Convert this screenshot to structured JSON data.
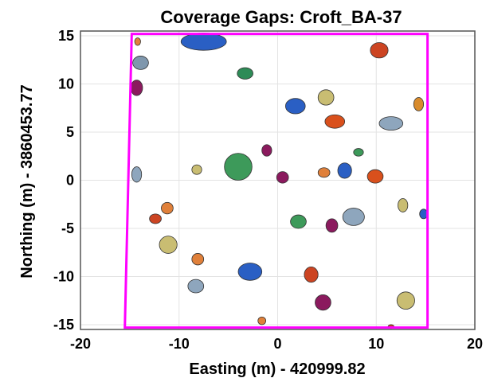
{
  "chart_data": {
    "type": "scatter",
    "title": "Coverage Gaps: Croft_BA-37",
    "xlabel": "Easting (m) - 420999.82",
    "ylabel": "Northing (m) - 3860453.77",
    "xlim": [
      -20,
      20
    ],
    "ylim": [
      -15.5,
      15.5
    ],
    "xticks": [
      -20,
      -10,
      0,
      10,
      20
    ],
    "yticks": [
      -15,
      -10,
      -5,
      0,
      5,
      10,
      15
    ],
    "grid": true,
    "boundary": {
      "color": "#ff00ff",
      "points": [
        [
          -14.8,
          15.2
        ],
        [
          15.2,
          15.2
        ],
        [
          15.2,
          -15.3
        ],
        [
          -15.5,
          -15.3
        ]
      ]
    },
    "gaps": [
      {
        "x": -7.5,
        "y": 14.4,
        "rx": 2.3,
        "ry": 0.9,
        "color": "#2a5fc4"
      },
      {
        "x": -14.2,
        "y": 14.4,
        "rx": 0.3,
        "ry": 0.4,
        "color": "#e0803a"
      },
      {
        "x": -13.9,
        "y": 12.2,
        "rx": 0.8,
        "ry": 0.7,
        "color": "#7f97ad"
      },
      {
        "x": -14.3,
        "y": 9.6,
        "rx": 0.6,
        "ry": 0.8,
        "color": "#8b1a5e"
      },
      {
        "x": -3.3,
        "y": 11.1,
        "rx": 0.8,
        "ry": 0.6,
        "color": "#2e8b57"
      },
      {
        "x": 10.3,
        "y": 13.5,
        "rx": 0.9,
        "ry": 0.8,
        "color": "#cc4422"
      },
      {
        "x": 1.8,
        "y": 7.7,
        "rx": 1.0,
        "ry": 0.8,
        "color": "#2a5fc4"
      },
      {
        "x": 4.9,
        "y": 8.6,
        "rx": 0.8,
        "ry": 0.8,
        "color": "#c9bd72"
      },
      {
        "x": 5.8,
        "y": 6.1,
        "rx": 1.0,
        "ry": 0.7,
        "color": "#d9501c"
      },
      {
        "x": 14.3,
        "y": 7.9,
        "rx": 0.5,
        "ry": 0.7,
        "color": "#d88b2c"
      },
      {
        "x": 11.5,
        "y": 5.9,
        "rx": 1.2,
        "ry": 0.7,
        "color": "#8ea6bd"
      },
      {
        "x": -14.3,
        "y": 0.6,
        "rx": 0.5,
        "ry": 0.8,
        "color": "#8ea6bd"
      },
      {
        "x": -8.2,
        "y": 1.1,
        "rx": 0.5,
        "ry": 0.5,
        "color": "#c9bd72"
      },
      {
        "x": -4.0,
        "y": 1.4,
        "rx": 1.4,
        "ry": 1.4,
        "color": "#3d9a5a"
      },
      {
        "x": -1.1,
        "y": 3.1,
        "rx": 0.5,
        "ry": 0.6,
        "color": "#8b1a5e"
      },
      {
        "x": 0.5,
        "y": 0.3,
        "rx": 0.6,
        "ry": 0.6,
        "color": "#8b1a5e"
      },
      {
        "x": 4.7,
        "y": 0.8,
        "rx": 0.6,
        "ry": 0.5,
        "color": "#e0803a"
      },
      {
        "x": 6.8,
        "y": 1.0,
        "rx": 0.7,
        "ry": 0.8,
        "color": "#2a5fc4"
      },
      {
        "x": 8.2,
        "y": 2.9,
        "rx": 0.5,
        "ry": 0.4,
        "color": "#3d9a5a"
      },
      {
        "x": 9.9,
        "y": 0.4,
        "rx": 0.8,
        "ry": 0.7,
        "color": "#d9501c"
      },
      {
        "x": -11.2,
        "y": -2.9,
        "rx": 0.6,
        "ry": 0.6,
        "color": "#e0803a"
      },
      {
        "x": -12.4,
        "y": -4.0,
        "rx": 0.6,
        "ry": 0.5,
        "color": "#cc4422"
      },
      {
        "x": -11.1,
        "y": -6.7,
        "rx": 0.9,
        "ry": 0.9,
        "color": "#c9bd72"
      },
      {
        "x": 2.1,
        "y": -4.3,
        "rx": 0.8,
        "ry": 0.7,
        "color": "#3d9a5a"
      },
      {
        "x": 5.5,
        "y": -4.7,
        "rx": 0.6,
        "ry": 0.7,
        "color": "#8b1a5e"
      },
      {
        "x": 7.7,
        "y": -3.8,
        "rx": 1.1,
        "ry": 0.9,
        "color": "#8ea6bd"
      },
      {
        "x": 12.7,
        "y": -2.6,
        "rx": 0.5,
        "ry": 0.7,
        "color": "#c9bd72"
      },
      {
        "x": 14.8,
        "y": -3.5,
        "rx": 0.4,
        "ry": 0.5,
        "color": "#2a5fc4"
      },
      {
        "x": -8.1,
        "y": -8.2,
        "rx": 0.6,
        "ry": 0.6,
        "color": "#e0803a"
      },
      {
        "x": -2.8,
        "y": -9.5,
        "rx": 1.2,
        "ry": 0.9,
        "color": "#2a5fc4"
      },
      {
        "x": -8.3,
        "y": -11.0,
        "rx": 0.8,
        "ry": 0.7,
        "color": "#8ea6bd"
      },
      {
        "x": 3.4,
        "y": -9.8,
        "rx": 0.7,
        "ry": 0.8,
        "color": "#cc4422"
      },
      {
        "x": 4.6,
        "y": -12.7,
        "rx": 0.8,
        "ry": 0.8,
        "color": "#8b1a5e"
      },
      {
        "x": 13.0,
        "y": -12.5,
        "rx": 0.9,
        "ry": 0.9,
        "color": "#c9bd72"
      },
      {
        "x": -1.6,
        "y": -14.6,
        "rx": 0.4,
        "ry": 0.4,
        "color": "#e0803a"
      },
      {
        "x": 11.5,
        "y": -15.2,
        "rx": 0.3,
        "ry": 0.2,
        "color": "#cc4422"
      }
    ]
  }
}
